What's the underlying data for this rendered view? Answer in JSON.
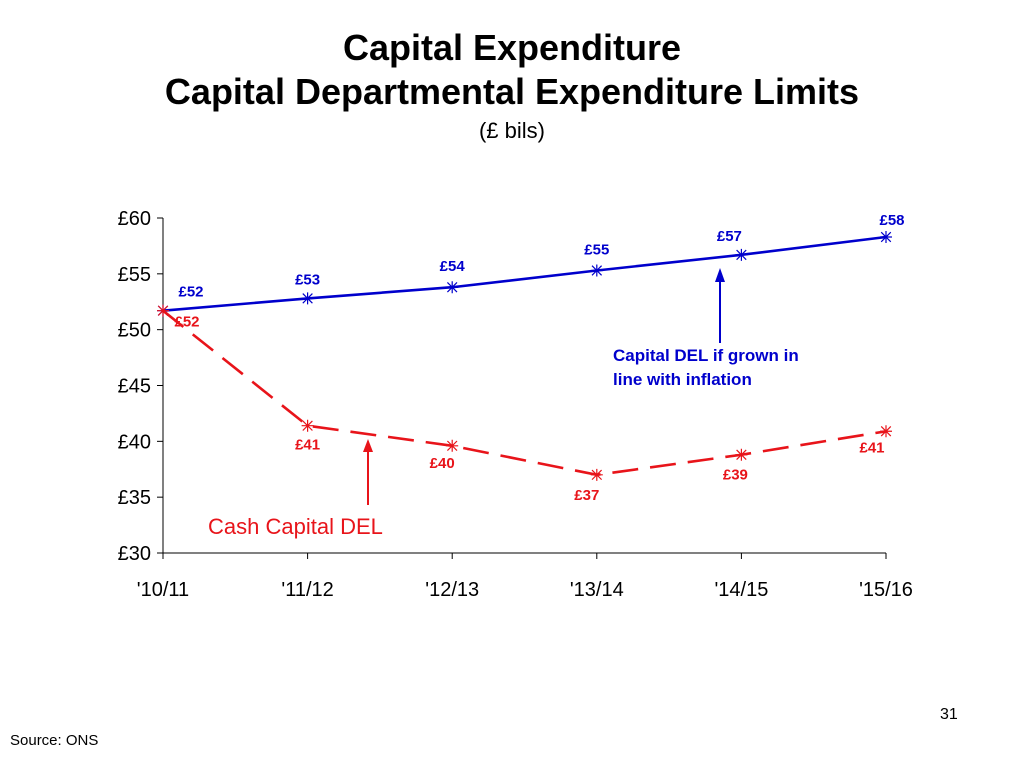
{
  "title": "Capital Expenditure",
  "subtitle_line": "Capital Departmental Expenditure Limits",
  "units": "(£ bils)",
  "source": "Source: ONS",
  "page_number": "31",
  "colors": {
    "blue": "#0000cc",
    "red": "#e8141a",
    "axis": "#000000"
  },
  "chart_data": {
    "type": "line",
    "categories": [
      "'10/11",
      "'11/12",
      "'12/13",
      "'13/14",
      "'14/15",
      "'15/16"
    ],
    "ylim": [
      30,
      60
    ],
    "yticks": [
      30,
      35,
      40,
      45,
      50,
      55,
      60
    ],
    "ytick_labels": [
      "£30",
      "£35",
      "£40",
      "£45",
      "£50",
      "£55",
      "£60"
    ],
    "grid": false,
    "series": [
      {
        "name": "Capital DEL if grown in line with inflation",
        "values": [
          51.7,
          52.8,
          53.8,
          55.3,
          56.7,
          58.3
        ],
        "labels": [
          "£52",
          "£53",
          "£54",
          "£55",
          "£57",
          "£58"
        ],
        "color": "#0000cc",
        "style": "solid"
      },
      {
        "name": "Cash Capital DEL",
        "values": [
          51.7,
          41.4,
          39.6,
          37.0,
          38.8,
          40.9
        ],
        "labels": [
          "£52",
          "£41",
          "£40",
          "£37",
          "£39",
          "£41"
        ],
        "color": "#e8141a",
        "style": "dashed"
      }
    ],
    "annotations": [
      {
        "text_lines": [
          "Capital DEL if grown in",
          "line with inflation"
        ],
        "series": 0
      },
      {
        "text_lines": [
          "Cash Capital DEL"
        ],
        "series": 1
      }
    ]
  }
}
